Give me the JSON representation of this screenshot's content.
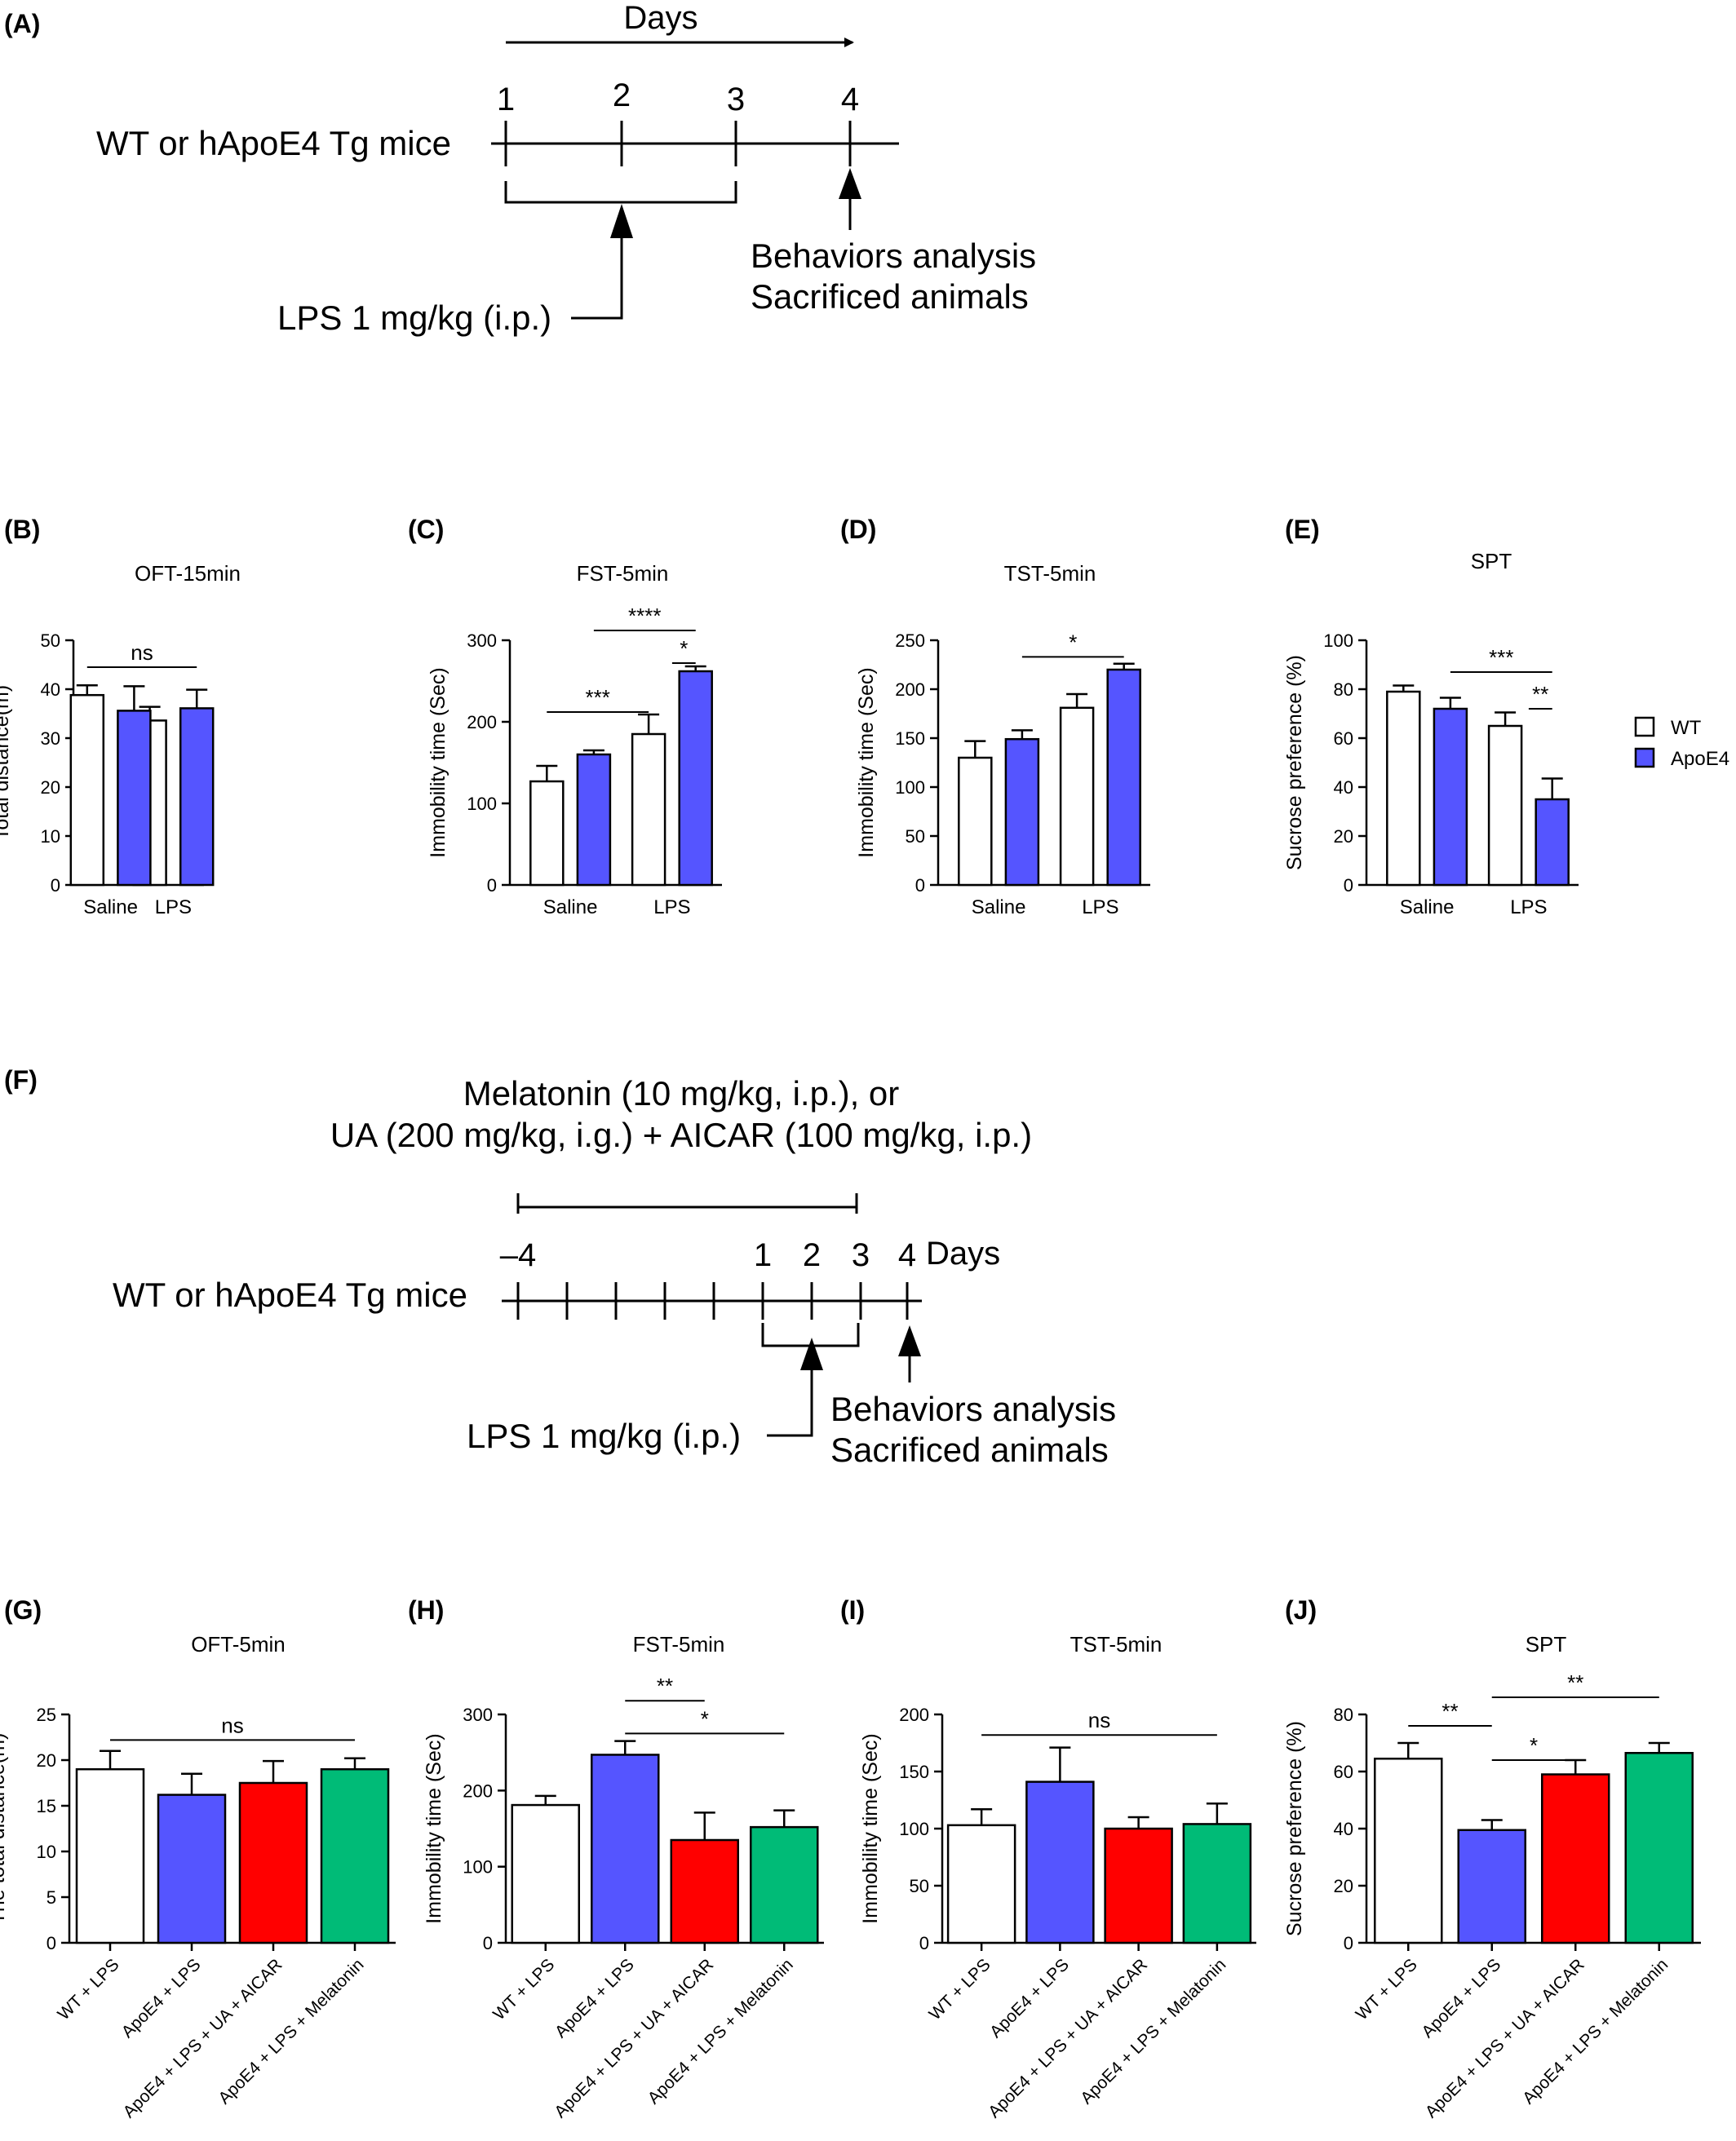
{
  "colors": {
    "wt": "#ffffff",
    "apoe4": "#5555ff",
    "ua_aicar": "#ff0000",
    "melatonin": "#00bb77",
    "line": "#000000"
  },
  "legend": {
    "wt": "WT",
    "apoe4": "ApoE4"
  },
  "panel_a": {
    "label": "(A)",
    "days_label": "Days",
    "day_ticks": [
      "1",
      "2",
      "3",
      "4"
    ],
    "mice_label": "WT or hApoE4 Tg mice",
    "lps_label": "LPS 1 mg/kg (i.p.)",
    "behaviors_label": "Behaviors analysis",
    "sacrificed_label": "Sacrificed animals"
  },
  "panel_f": {
    "label": "(F)",
    "treatment_line1": "Melatonin (10 mg/kg, i.p.), or",
    "treatment_line2": "UA (200 mg/kg, i.g.) + AICAR (100 mg/kg, i.p.)",
    "day_ticks": [
      "–4",
      "1",
      "2",
      "3",
      "4"
    ],
    "days_label": "Days",
    "mice_label": "WT or hApoE4 Tg mice",
    "lps_label": "LPS 1 mg/kg (i.p.)",
    "behaviors_label": "Behaviors analysis",
    "sacrificed_label": "Sacrificed animals"
  },
  "chart_data": [
    {
      "id": "B",
      "panel": "(B)",
      "type": "bar",
      "title": "OFT-15min",
      "ylabel": "Total distance(m)",
      "ylim": [
        0,
        50
      ],
      "yticks": [
        0,
        10,
        20,
        30,
        40,
        50
      ],
      "categories": [
        "Saline",
        "LPS"
      ],
      "series": [
        {
          "name": "WT",
          "values": [
            38.8,
            33.6
          ],
          "errors": [
            2.0,
            2.8
          ]
        },
        {
          "name": "ApoE4",
          "values": [
            35.6,
            36.1
          ],
          "errors": [
            5.0,
            3.8
          ]
        }
      ],
      "annotations": [
        {
          "text": "ns",
          "from": [
            0,
            0
          ],
          "to": [
            1,
            1
          ],
          "y": 44.5
        }
      ]
    },
    {
      "id": "C",
      "panel": "(C)",
      "type": "bar",
      "title": "FST-5min",
      "ylabel": "Immobility  time (Sec)",
      "ylim": [
        0,
        300
      ],
      "yticks": [
        0,
        100,
        200,
        300
      ],
      "categories": [
        "Saline",
        "LPS"
      ],
      "series": [
        {
          "name": "WT",
          "values": [
            127,
            185
          ],
          "errors": [
            19,
            24
          ]
        },
        {
          "name": "ApoE4",
          "values": [
            160,
            262
          ],
          "errors": [
            5,
            6
          ]
        }
      ],
      "annotations": [
        {
          "text": "****",
          "from": [
            0,
            1
          ],
          "to": [
            1,
            1
          ],
          "y": 312
        },
        {
          "text": "*",
          "from": [
            1,
            0.5
          ],
          "to": [
            1,
            1
          ],
          "y": 272
        },
        {
          "text": "***",
          "from": [
            0,
            0
          ],
          "to": [
            1,
            0
          ],
          "y": 212
        }
      ]
    },
    {
      "id": "D",
      "panel": "(D)",
      "type": "bar",
      "title": "TST-5min",
      "ylabel": "Immobility  time (Sec)",
      "ylim": [
        0,
        250
      ],
      "yticks": [
        0,
        50,
        100,
        150,
        200,
        250
      ],
      "categories": [
        "Saline",
        "LPS"
      ],
      "series": [
        {
          "name": "WT",
          "values": [
            130,
            181
          ],
          "errors": [
            17,
            14
          ]
        },
        {
          "name": "ApoE4",
          "values": [
            149,
            220
          ],
          "errors": [
            9,
            6
          ]
        }
      ],
      "annotations": [
        {
          "text": "*",
          "from": [
            0,
            1
          ],
          "to": [
            1,
            1
          ],
          "y": 233
        }
      ]
    },
    {
      "id": "E",
      "panel": "(E)",
      "type": "bar",
      "title": "SPT",
      "ylabel": "Sucrose preference (%)",
      "ylim": [
        0,
        100
      ],
      "yticks": [
        0,
        20,
        40,
        60,
        80,
        100
      ],
      "categories": [
        "Saline",
        "LPS"
      ],
      "series": [
        {
          "name": "WT",
          "values": [
            79,
            65
          ],
          "errors": [
            2.5,
            5.5
          ]
        },
        {
          "name": "ApoE4",
          "values": [
            72,
            35
          ],
          "errors": [
            4.5,
            8.5
          ]
        }
      ],
      "annotations": [
        {
          "text": "***",
          "from": [
            0,
            1
          ],
          "to": [
            1,
            1
          ],
          "y": 87
        },
        {
          "text": "**",
          "from": [
            1,
            0.5
          ],
          "to": [
            1,
            1
          ],
          "y": 72
        }
      ]
    },
    {
      "id": "G",
      "panel": "(G)",
      "type": "bar",
      "title": "OFT-5min",
      "ylabel": "The total distance(m)",
      "ylim": [
        0,
        25
      ],
      "yticks": [
        0,
        5,
        10,
        15,
        20,
        25
      ],
      "categories": [
        "WT + LPS",
        "ApoE4 + LPS",
        "ApoE4 + LPS + UA + AICAR",
        "ApoE4 + LPS + Melatonin"
      ],
      "values": [
        19,
        16.2,
        17.5,
        19
      ],
      "errors": [
        2.0,
        2.3,
        2.4,
        1.2
      ],
      "annotations": [
        {
          "text": "ns",
          "from": 0,
          "to": 3,
          "y": 22.2
        }
      ]
    },
    {
      "id": "H",
      "panel": "(H)",
      "type": "bar",
      "title": "FST-5min",
      "ylabel": "Immobility  time (Sec)",
      "ylim": [
        0,
        300
      ],
      "yticks": [
        0,
        100,
        200,
        300
      ],
      "categories": [
        "WT + LPS",
        "ApoE4 + LPS",
        "ApoE4 + LPS + UA + AICAR",
        "ApoE4 + LPS + Melatonin"
      ],
      "values": [
        181,
        247,
        135,
        152
      ],
      "errors": [
        12,
        18,
        36,
        22
      ],
      "annotations": [
        {
          "text": "**",
          "from": 1,
          "to": 2,
          "y": 318
        },
        {
          "text": "*",
          "from": 1,
          "to": 3,
          "y": 275
        }
      ]
    },
    {
      "id": "I",
      "panel": "(I)",
      "type": "bar",
      "title": "TST-5min",
      "ylabel": "Immobility  time (Sec)",
      "ylim": [
        0,
        200
      ],
      "yticks": [
        0,
        50,
        100,
        150,
        200
      ],
      "categories": [
        "WT + LPS",
        "ApoE4 + LPS",
        "ApoE4 + LPS + UA + AICAR",
        "ApoE4 + LPS + Melatonin"
      ],
      "values": [
        103,
        141,
        100,
        104
      ],
      "errors": [
        14,
        30,
        10,
        18
      ],
      "annotations": [
        {
          "text": "ns",
          "from": 0,
          "to": 3,
          "y": 182
        }
      ]
    },
    {
      "id": "J",
      "panel": "(J)",
      "type": "bar",
      "title": "SPT",
      "ylabel": "Sucrose preference (%)",
      "ylim": [
        0,
        80
      ],
      "yticks": [
        0,
        20,
        40,
        60,
        80
      ],
      "categories": [
        "WT + LPS",
        "ApoE4 + LPS",
        "ApoE4 + LPS + UA + AICAR",
        "ApoE4 + LPS + Melatonin"
      ],
      "values": [
        64.5,
        39.5,
        59,
        66.5
      ],
      "errors": [
        5.5,
        3.5,
        5.0,
        3.5
      ],
      "annotations": [
        {
          "text": "**",
          "from": 0,
          "to": 1,
          "y": 76
        },
        {
          "text": "*",
          "from": 1,
          "to": 2,
          "y": 64
        },
        {
          "text": "**",
          "from": 1,
          "to": 3,
          "y": 86
        }
      ]
    }
  ]
}
